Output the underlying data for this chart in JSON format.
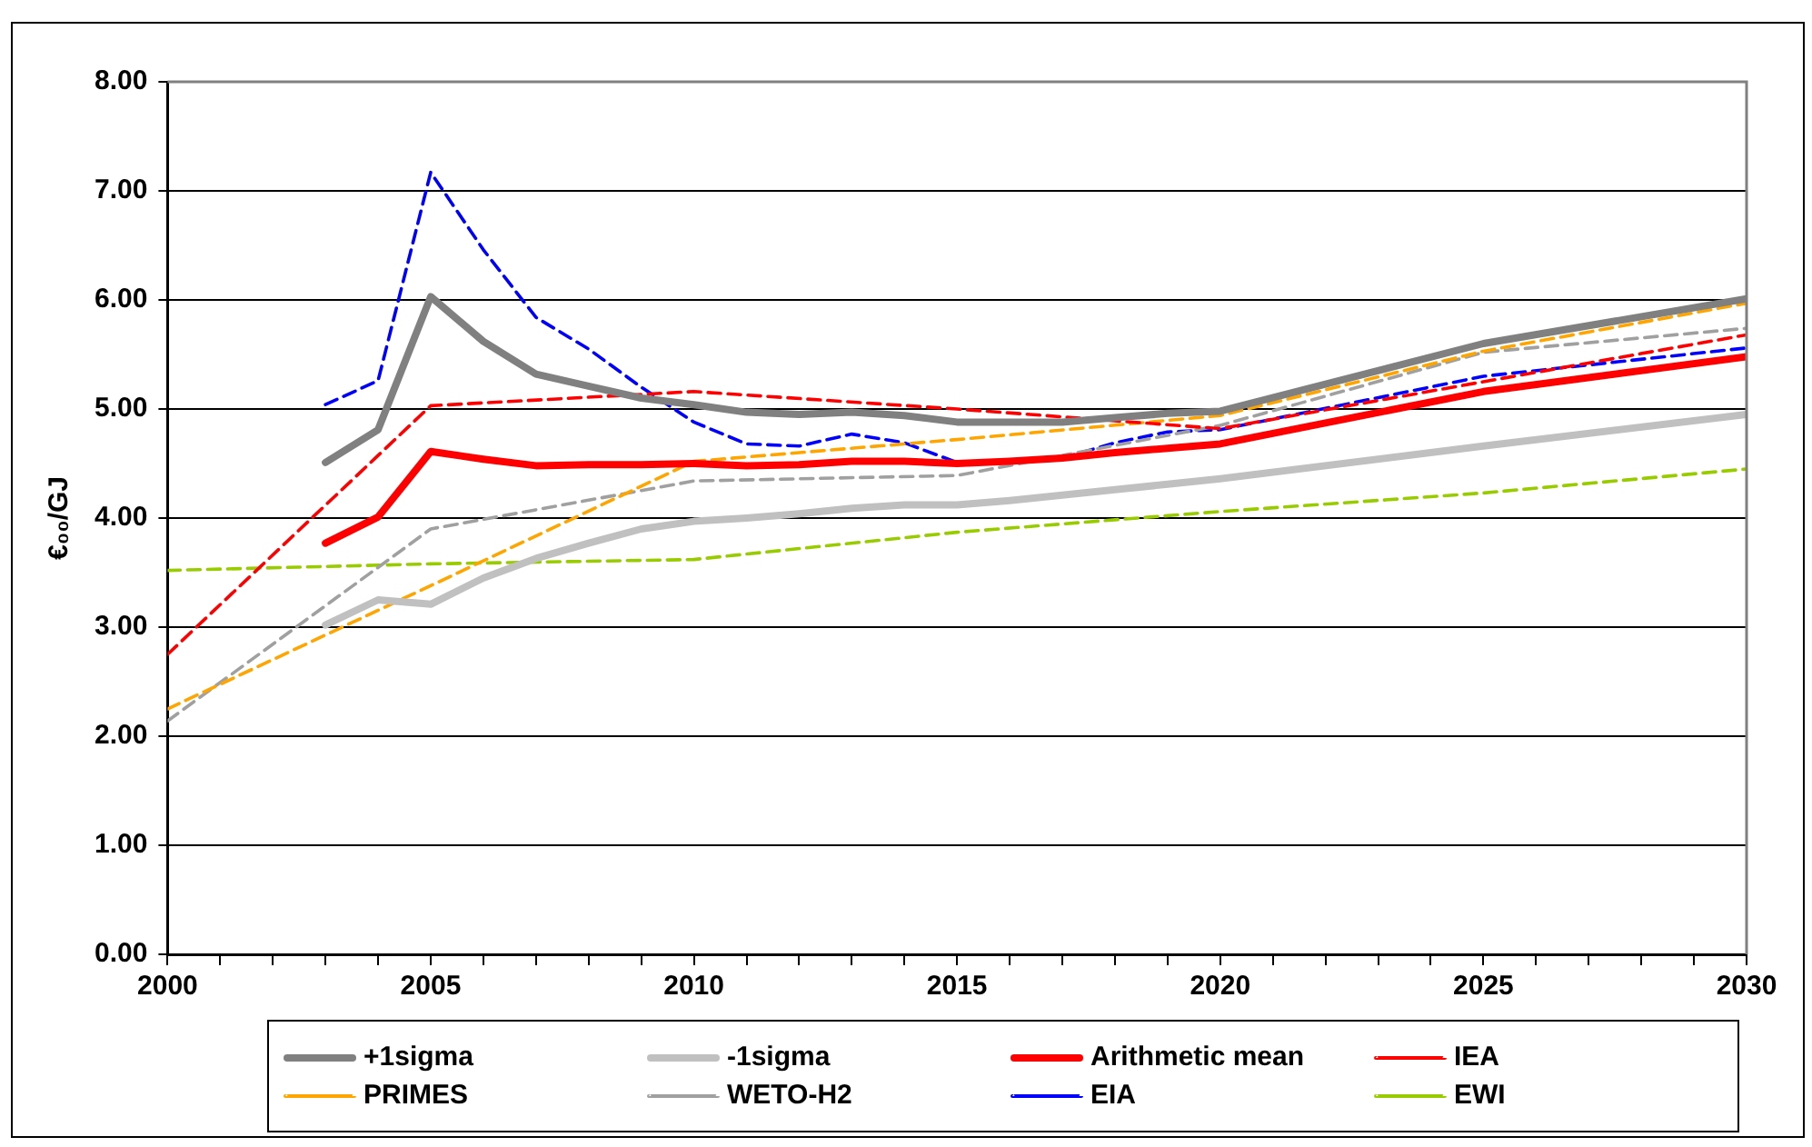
{
  "chart_data": {
    "type": "line",
    "ylabel": "€₀₀/GJ",
    "xlim": [
      2000,
      2030
    ],
    "xticks": [
      2000,
      {
        "value": 2001,
        "label": null
      },
      {
        "value": 2002,
        "label": null
      },
      {
        "value": 2003,
        "label": null
      },
      {
        "value": 2004,
        "label": null
      },
      2005,
      {
        "value": 2006,
        "label": null
      },
      {
        "value": 2007,
        "label": null
      },
      {
        "value": 2008,
        "label": null
      },
      {
        "value": 2009,
        "label": null
      },
      2010,
      {
        "value": 2011,
        "label": null
      },
      {
        "value": 2012,
        "label": null
      },
      {
        "value": 2013,
        "label": null
      },
      {
        "value": 2014,
        "label": null
      },
      2015,
      {
        "value": 2016,
        "label": null
      },
      {
        "value": 2017,
        "label": null
      },
      {
        "value": 2018,
        "label": null
      },
      {
        "value": 2019,
        "label": null
      },
      2020,
      {
        "value": 2021,
        "label": null
      },
      {
        "value": 2022,
        "label": null
      },
      {
        "value": 2023,
        "label": null
      },
      {
        "value": 2024,
        "label": null
      },
      2025,
      {
        "value": 2026,
        "label": null
      },
      {
        "value": 2027,
        "label": null
      },
      {
        "value": 2028,
        "label": null
      },
      {
        "value": 2029,
        "label": null
      },
      2030
    ],
    "ylim": [
      0,
      8
    ],
    "yticks": [
      {
        "value": 0,
        "label": "0.00"
      },
      {
        "value": 1,
        "label": "1.00"
      },
      {
        "value": 2,
        "label": "2.00"
      },
      {
        "value": 3,
        "label": "3.00"
      },
      {
        "value": 4,
        "label": "4.00"
      },
      {
        "value": 5,
        "label": "5.00"
      },
      {
        "value": 6,
        "label": "6.00"
      },
      {
        "value": 7,
        "label": "7.00"
      },
      {
        "value": 8,
        "label": "8.00"
      }
    ],
    "grid": "y",
    "legend": "bottom",
    "marker": "none",
    "series": [
      {
        "name": "+1sigma",
        "color": "#808080",
        "line_style": "solid",
        "x": [
          2003,
          2004,
          2005,
          2006,
          2007,
          2008,
          2009,
          2010,
          2011,
          2012,
          2013,
          2014,
          2015,
          2016,
          2017,
          2018,
          2019,
          2020,
          2025,
          2030
        ],
        "values": [
          4.51,
          4.81,
          6.03,
          5.62,
          5.32,
          5.21,
          5.1,
          5.04,
          4.97,
          4.95,
          4.97,
          4.94,
          4.88,
          4.88,
          4.88,
          4.92,
          4.96,
          4.98,
          5.6,
          6.01
        ]
      },
      {
        "name": "-1sigma",
        "color": "#c0c0c0",
        "line_style": "solid",
        "x": [
          2003,
          2004,
          2005,
          2006,
          2007,
          2008,
          2009,
          2010,
          2011,
          2012,
          2013,
          2014,
          2015,
          2016,
          2017,
          2018,
          2019,
          2020,
          2025,
          2030
        ],
        "values": [
          3.02,
          3.25,
          3.21,
          3.45,
          3.63,
          3.77,
          3.9,
          3.97,
          4.0,
          4.04,
          4.09,
          4.12,
          4.12,
          4.16,
          4.21,
          4.26,
          4.31,
          4.36,
          4.66,
          4.95
        ]
      },
      {
        "name": "Arithmetic mean",
        "color": "#ff0000",
        "line_style": "solid",
        "x": [
          2003,
          2004,
          2005,
          2006,
          2007,
          2008,
          2009,
          2010,
          2011,
          2012,
          2013,
          2014,
          2015,
          2016,
          2017,
          2018,
          2019,
          2020,
          2025,
          2030
        ],
        "values": [
          3.77,
          4.01,
          4.61,
          4.54,
          4.48,
          4.49,
          4.49,
          4.5,
          4.48,
          4.49,
          4.52,
          4.52,
          4.5,
          4.52,
          4.55,
          4.6,
          4.64,
          4.68,
          5.16,
          5.48
        ]
      },
      {
        "name": "IEA",
        "color": "#ff0000",
        "line_style": "dashed",
        "x": [
          2000,
          2005,
          2010,
          2015,
          2020,
          2025,
          2030
        ],
        "values": [
          2.75,
          5.03,
          5.16,
          5.0,
          4.82,
          5.25,
          5.68
        ]
      },
      {
        "name": "PRIMES",
        "color": "#ffa500",
        "line_style": "dashed",
        "x": [
          2000,
          2005,
          2010,
          2015,
          2020,
          2025,
          2030
        ],
        "values": [
          2.25,
          3.38,
          4.52,
          4.72,
          4.94,
          5.53,
          5.97
        ]
      },
      {
        "name": "WETO-H2",
        "color": "#a0a0a0",
        "line_style": "dashed",
        "x": [
          2000,
          2005,
          2010,
          2015,
          2020,
          2025,
          2030
        ],
        "values": [
          2.14,
          3.9,
          4.34,
          4.39,
          4.85,
          5.52,
          5.74
        ]
      },
      {
        "name": "EIA",
        "color": "#0000ff",
        "line_style": "dashed",
        "x": [
          2003,
          2004,
          2005,
          2006,
          2007,
          2008,
          2009,
          2010,
          2011,
          2012,
          2013,
          2014,
          2015,
          2016,
          2017,
          2018,
          2019,
          2020,
          2025,
          2030
        ],
        "values": [
          5.04,
          5.26,
          7.17,
          6.46,
          5.84,
          5.55,
          5.2,
          4.88,
          4.68,
          4.66,
          4.77,
          4.69,
          4.51,
          4.51,
          4.55,
          4.69,
          4.79,
          4.81,
          5.3,
          5.56
        ]
      },
      {
        "name": "EWI",
        "color": "#99cc00",
        "line_style": "dashed",
        "x": [
          2000,
          2005,
          2010,
          2015,
          2020,
          2025,
          2030
        ],
        "values": [
          3.52,
          3.58,
          3.62,
          3.87,
          4.06,
          4.23,
          4.45
        ]
      }
    ]
  }
}
